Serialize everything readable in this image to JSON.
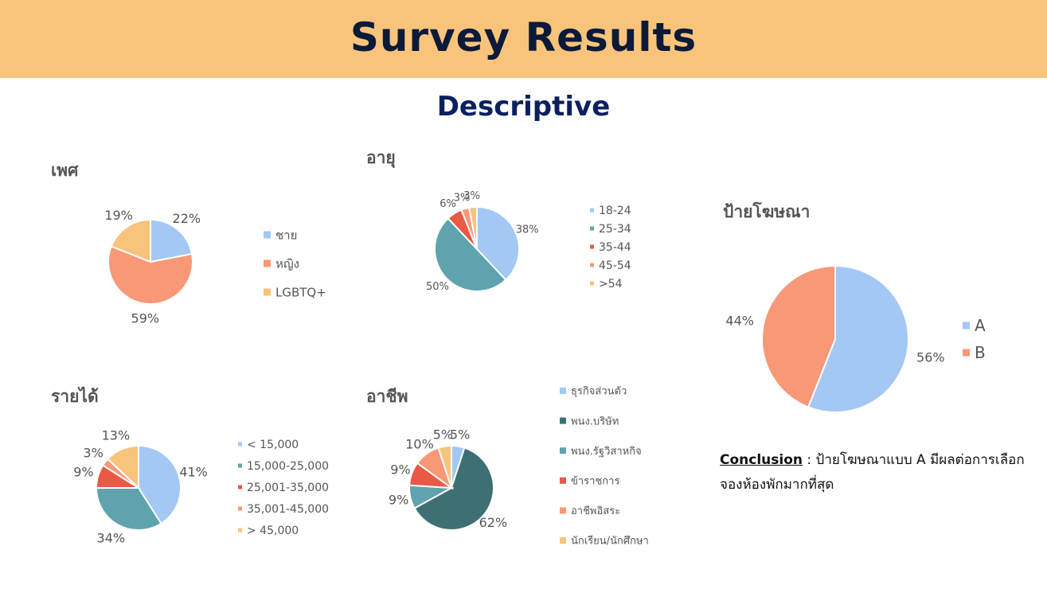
{
  "header": {
    "title": "Survey Results"
  },
  "subtitle": "Descriptive",
  "conclusion": {
    "label": "Conclusion",
    "separator": " : ",
    "text": "ป้ายโฆษณาแบบ A มีผลต่อการเลือกจองห้องพักมากที่สุด"
  },
  "chart_data": [
    {
      "id": "gender",
      "type": "pie",
      "title": "เพศ",
      "categories": [
        "ชาย",
        "หญิง",
        "LGBTQ+"
      ],
      "values": [
        22,
        59,
        19
      ],
      "labels": [
        "22%",
        "59%",
        "19%"
      ],
      "colors": [
        "#a3c8f4",
        "#f99877",
        "#f8c37b"
      ],
      "legend": "right"
    },
    {
      "id": "age",
      "type": "pie",
      "title": "อายุ",
      "categories": [
        "18-24",
        "25-34",
        "35-44",
        "45-54",
        ">54"
      ],
      "values": [
        38,
        50,
        6,
        3,
        3
      ],
      "labels": [
        "38%",
        "50%",
        "6%",
        "3%",
        "3%"
      ],
      "colors": [
        "#a3c8f4",
        "#5fa3ad",
        "#e85a45",
        "#f99877",
        "#f8c37b"
      ],
      "legend": "right"
    },
    {
      "id": "ad",
      "type": "pie",
      "title": "ป้ายโฆษณา",
      "categories": [
        "A",
        "B"
      ],
      "values": [
        56,
        44
      ],
      "labels": [
        "56%",
        "44%"
      ],
      "colors": [
        "#a3c8f4",
        "#f99877"
      ],
      "legend": "right"
    },
    {
      "id": "income",
      "type": "pie",
      "title": "รายได้",
      "categories": [
        "< 15,000",
        "15,000-25,000",
        "25,001-35,000",
        "35,001-45,000",
        "> 45,000"
      ],
      "values": [
        41,
        34,
        9,
        3,
        13
      ],
      "labels": [
        "41%",
        "34%",
        "9%",
        "3%",
        "13%"
      ],
      "colors": [
        "#a3c8f4",
        "#5fa3ad",
        "#e85a45",
        "#f99877",
        "#f8c37b"
      ],
      "legend": "right"
    },
    {
      "id": "occupation",
      "type": "pie",
      "title": "อาชีพ",
      "categories": [
        "ธุรกิจส่วนตัว",
        "พนง.บริษัท",
        "พนง.รัฐวิสาหกิจ",
        "ข้าราชการ",
        "อาชีพอิสระ",
        "นักเรียน/นักศึกษา"
      ],
      "values": [
        5,
        62,
        9,
        9,
        10,
        5
      ],
      "labels": [
        "5%",
        "62%",
        "9%",
        "9%",
        "10%",
        "5%"
      ],
      "colors": [
        "#a3c8f4",
        "#3e7073",
        "#5fa3ad",
        "#e85a45",
        "#f99877",
        "#f8c37b"
      ],
      "legend": "right"
    }
  ]
}
